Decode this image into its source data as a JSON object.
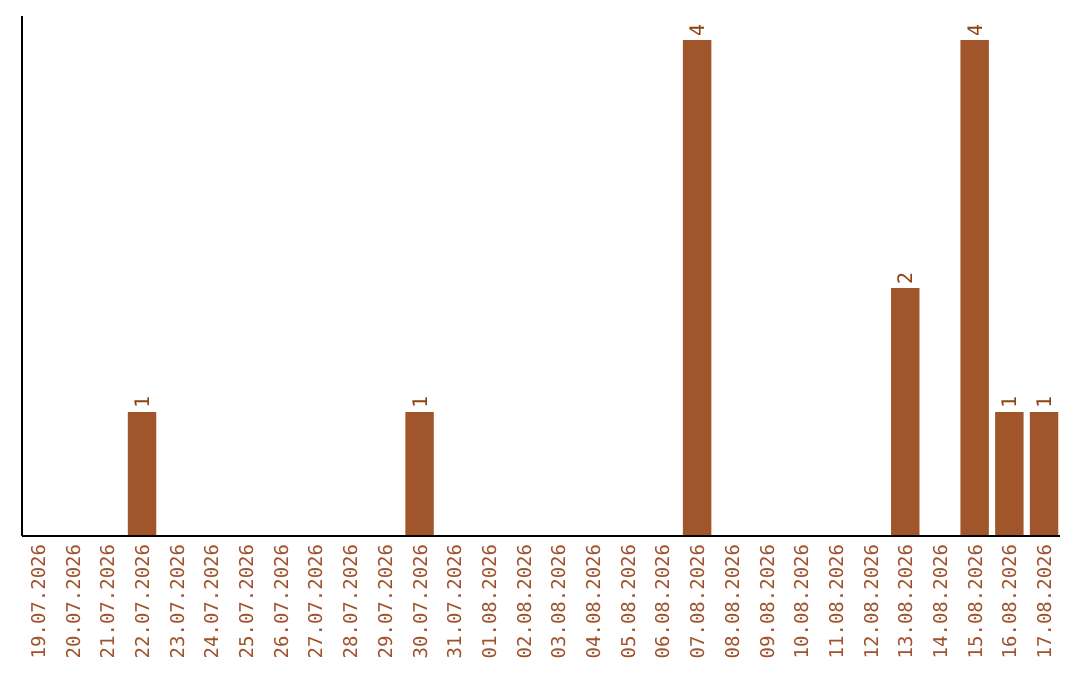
{
  "chart_data": {
    "type": "bar",
    "categories": [
      "19.07.2026",
      "20.07.2026",
      "21.07.2026",
      "22.07.2026",
      "23.07.2026",
      "24.07.2026",
      "25.07.2026",
      "26.07.2026",
      "27.07.2026",
      "28.07.2026",
      "29.07.2026",
      "30.07.2026",
      "31.07.2026",
      "01.08.2026",
      "02.08.2026",
      "03.08.2026",
      "04.08.2026",
      "05.08.2026",
      "06.08.2026",
      "07.08.2026",
      "08.08.2026",
      "09.08.2026",
      "10.08.2026",
      "11.08.2026",
      "12.08.2026",
      "13.08.2026",
      "14.08.2026",
      "15.08.2026",
      "16.08.2026",
      "17.08.2026"
    ],
    "values": [
      0,
      0,
      0,
      1,
      0,
      0,
      0,
      0,
      0,
      0,
      0,
      1,
      0,
      0,
      0,
      0,
      0,
      0,
      0,
      4,
      0,
      0,
      0,
      0,
      0,
      2,
      0,
      4,
      1,
      1
    ],
    "value_labels": [
      null,
      null,
      null,
      "1",
      null,
      null,
      null,
      null,
      null,
      null,
      null,
      "1",
      null,
      null,
      null,
      null,
      null,
      null,
      null,
      "4",
      null,
      null,
      null,
      null,
      null,
      "2",
      null,
      "4",
      "1",
      "1"
    ],
    "color": "#a0562a",
    "ylim": [
      0,
      4
    ],
    "tick_labels": "x"
  }
}
